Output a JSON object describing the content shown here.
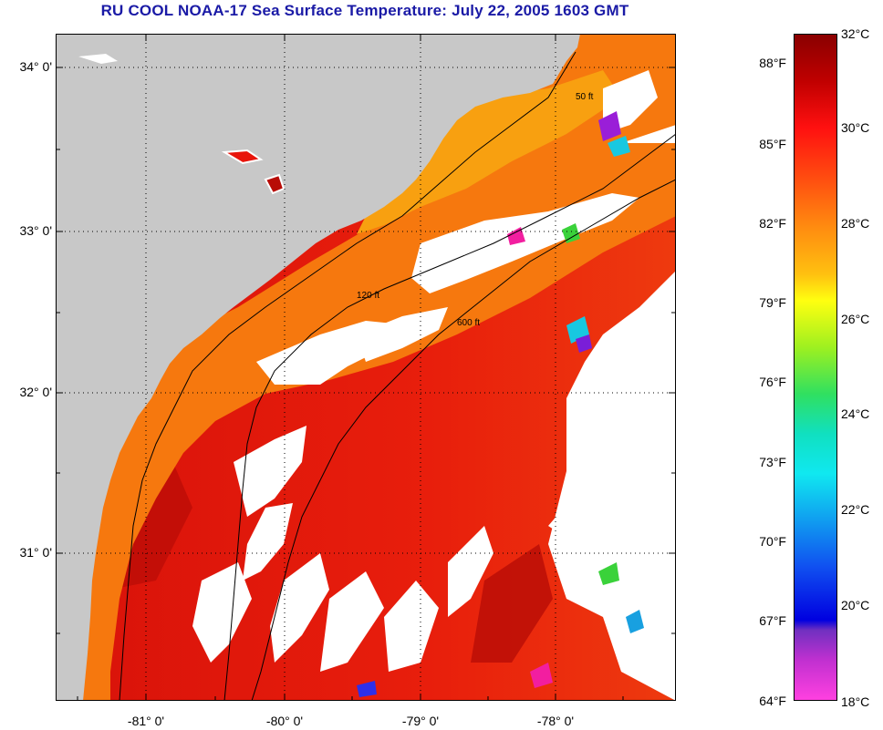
{
  "title": "RU COOL  NOAA-17  Sea Surface Temperature:  July 22, 2005 1603 GMT",
  "latitude_labels": [
    "34° 0'",
    "33° 0'",
    "32° 0'",
    "31° 0'"
  ],
  "longitude_labels": [
    "-81° 0'",
    "-80° 0'",
    "-79° 0'",
    "-78° 0'"
  ],
  "colorbar": {
    "fahrenheit_labels": [
      "88°F",
      "85°F",
      "82°F",
      "79°F",
      "76°F",
      "73°F",
      "70°F",
      "67°F",
      "64°F"
    ],
    "celsius_labels": [
      "32°C",
      "30°C",
      "28°C",
      "26°C",
      "24°C",
      "22°C",
      "20°C",
      "18°C"
    ],
    "range_c": [
      18,
      32
    ]
  },
  "contour_labels": [
    "50 ft",
    "120 ft",
    "600 ft"
  ],
  "colors": {
    "land": "#c8c8c8",
    "cloud": "#ffffff",
    "warm_water": "#e8140a",
    "shelf_water": "#f87a10",
    "title": "#1a1aa6"
  }
}
